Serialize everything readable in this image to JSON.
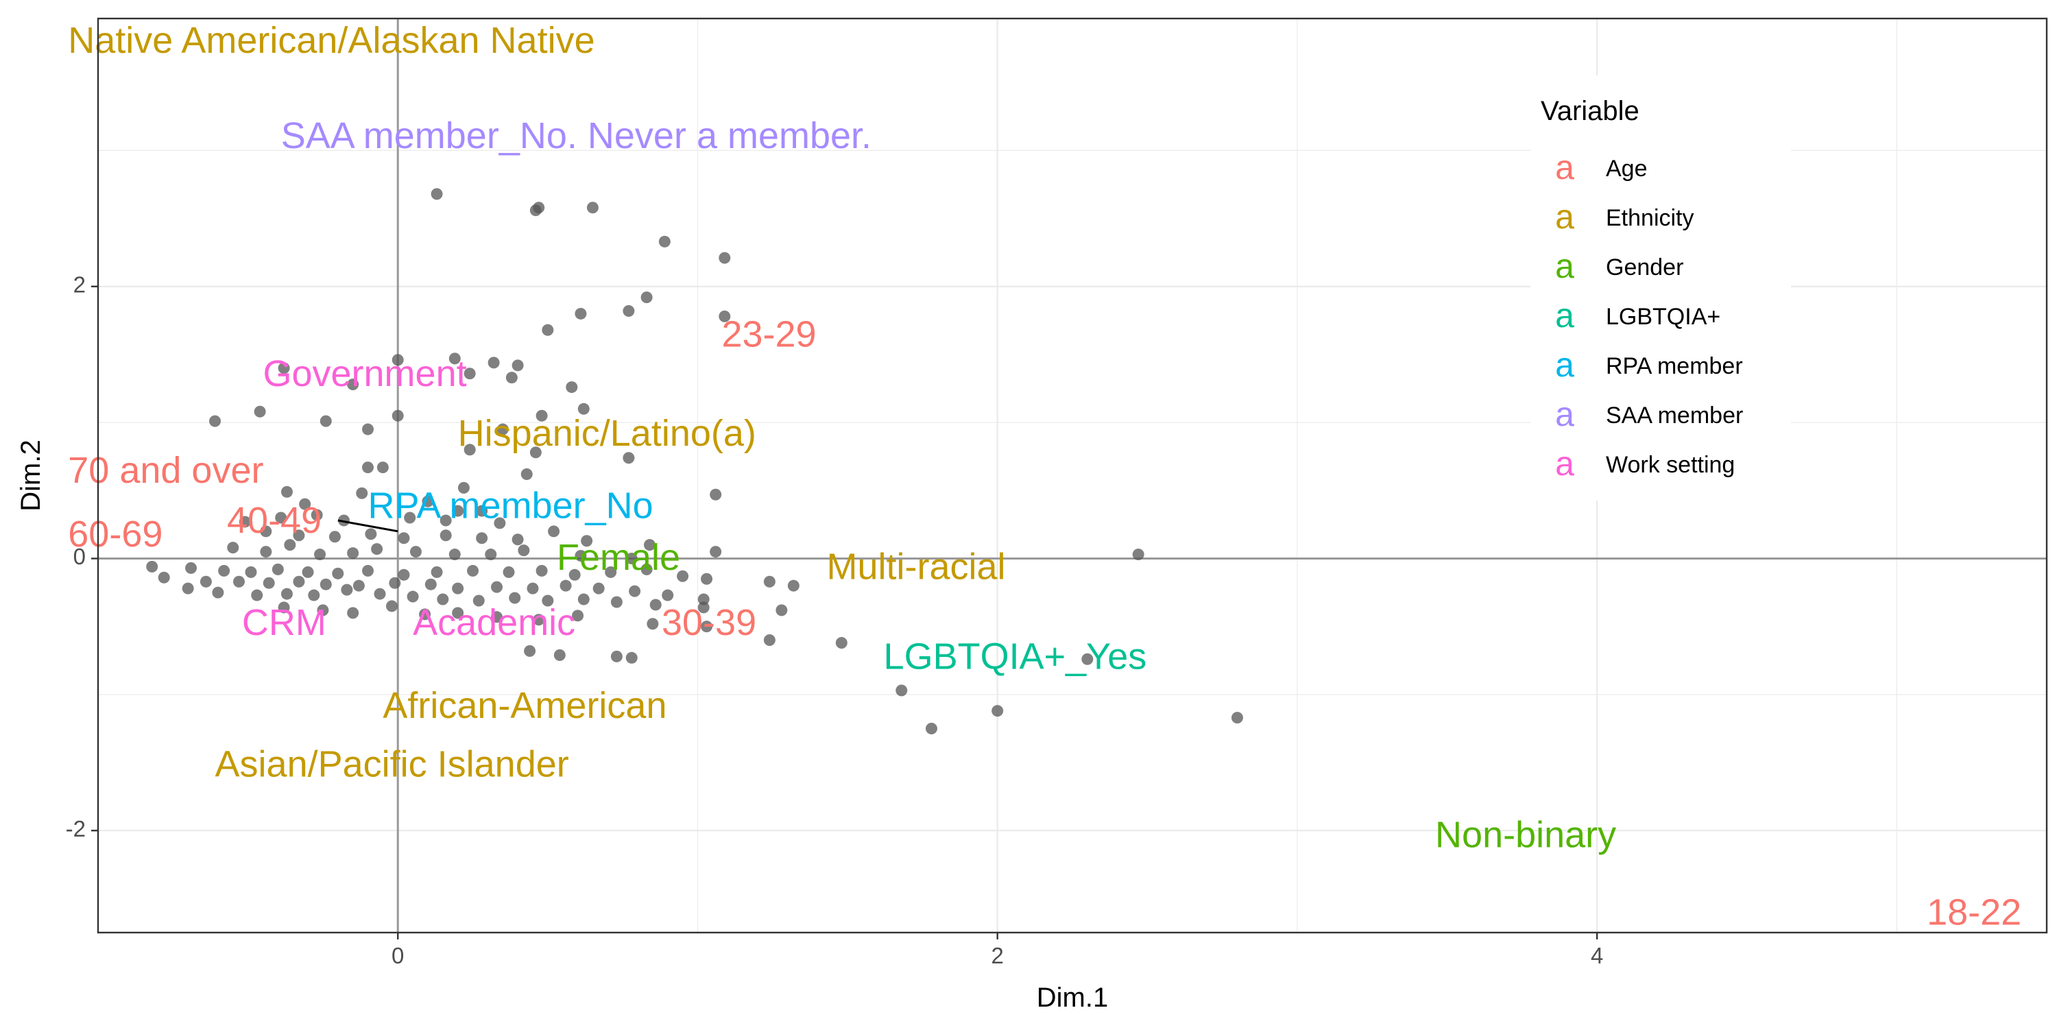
{
  "chart_data": {
    "type": "scatter",
    "xlabel": "Dim.1",
    "ylabel": "Dim.2",
    "xlim": [
      -1.0,
      5.5
    ],
    "ylim": [
      -2.75,
      3.97
    ],
    "x_ticks": [
      0,
      2,
      4
    ],
    "y_ticks": [
      -2,
      0,
      2
    ],
    "grid": true,
    "reference_lines": {
      "x": 0,
      "y": 0
    },
    "legend": {
      "title": "Variable",
      "placement": "top-right",
      "glyph": "a",
      "entries": [
        {
          "name": "Age",
          "color": "#F8766D"
        },
        {
          "name": "Ethnicity",
          "color": "#C49A00"
        },
        {
          "name": "Gender",
          "color": "#53B400"
        },
        {
          "name": "LGBTQIA+",
          "color": "#00C094"
        },
        {
          "name": "RPA member",
          "color": "#00B6EB"
        },
        {
          "name": "SAA member",
          "color": "#A58AFF"
        },
        {
          "name": "Work setting",
          "color": "#FB61D7"
        }
      ]
    },
    "points_color": "#555555",
    "points": [
      [
        0.13,
        2.68
      ],
      [
        0.46,
        2.56
      ],
      [
        0.47,
        2.58
      ],
      [
        0.65,
        2.58
      ],
      [
        0.89,
        2.33
      ],
      [
        1.09,
        2.21
      ],
      [
        0.83,
        1.92
      ],
      [
        0.77,
        1.82
      ],
      [
        0.61,
        1.8
      ],
      [
        0.5,
        1.68
      ],
      [
        1.09,
        1.78
      ],
      [
        0.0,
        1.46
      ],
      [
        0.19,
        1.47
      ],
      [
        0.32,
        1.44
      ],
      [
        0.4,
        1.42
      ],
      [
        -0.38,
        1.4
      ],
      [
        0.24,
        1.36
      ],
      [
        0.58,
        1.26
      ],
      [
        0.38,
        1.33
      ],
      [
        -0.15,
        1.28
      ],
      [
        0.62,
        1.1
      ],
      [
        0.48,
        1.05
      ],
      [
        -0.46,
        1.08
      ],
      [
        -0.24,
        1.01
      ],
      [
        -0.61,
        1.01
      ],
      [
        -0.1,
        0.95
      ],
      [
        0.0,
        1.05
      ],
      [
        0.35,
        0.95
      ],
      [
        0.24,
        0.8
      ],
      [
        0.46,
        0.78
      ],
      [
        0.77,
        0.74
      ],
      [
        -0.05,
        0.67
      ],
      [
        -0.1,
        0.67
      ],
      [
        0.43,
        0.62
      ],
      [
        1.06,
        0.47
      ],
      [
        0.22,
        0.52
      ],
      [
        -0.37,
        0.49
      ],
      [
        -0.31,
        0.4
      ],
      [
        -0.12,
        0.48
      ],
      [
        0.1,
        0.42
      ],
      [
        0.28,
        0.35
      ],
      [
        -0.51,
        0.27
      ],
      [
        -0.39,
        0.3
      ],
      [
        -0.27,
        0.32
      ],
      [
        -0.18,
        0.28
      ],
      [
        0.04,
        0.3
      ],
      [
        0.16,
        0.28
      ],
      [
        0.34,
        0.26
      ],
      [
        0.52,
        0.2
      ],
      [
        -0.44,
        0.2
      ],
      [
        -0.33,
        0.17
      ],
      [
        -0.21,
        0.16
      ],
      [
        -0.09,
        0.18
      ],
      [
        0.02,
        0.15
      ],
      [
        0.16,
        0.17
      ],
      [
        0.28,
        0.15
      ],
      [
        0.4,
        0.14
      ],
      [
        0.63,
        0.13
      ],
      [
        0.84,
        0.1
      ],
      [
        1.06,
        0.05
      ],
      [
        -0.55,
        0.08
      ],
      [
        -0.44,
        0.05
      ],
      [
        -0.36,
        0.1
      ],
      [
        -0.26,
        0.03
      ],
      [
        -0.15,
        0.04
      ],
      [
        -0.07,
        0.07
      ],
      [
        0.06,
        0.05
      ],
      [
        0.19,
        0.03
      ],
      [
        0.31,
        0.03
      ],
      [
        0.42,
        0.06
      ],
      [
        0.61,
        0.02
      ],
      [
        0.78,
        0.0
      ],
      [
        -0.82,
        -0.06
      ],
      [
        -0.69,
        -0.07
      ],
      [
        -0.58,
        -0.09
      ],
      [
        -0.49,
        -0.1
      ],
      [
        -0.4,
        -0.08
      ],
      [
        -0.3,
        -0.1
      ],
      [
        -0.2,
        -0.11
      ],
      [
        -0.1,
        -0.09
      ],
      [
        0.02,
        -0.12
      ],
      [
        0.13,
        -0.1
      ],
      [
        0.25,
        -0.09
      ],
      [
        0.37,
        -0.1
      ],
      [
        0.48,
        -0.09
      ],
      [
        0.59,
        -0.12
      ],
      [
        0.71,
        -0.1
      ],
      [
        0.83,
        -0.08
      ],
      [
        0.95,
        -0.13
      ],
      [
        1.03,
        -0.15
      ],
      [
        -0.78,
        -0.14
      ],
      [
        -0.64,
        -0.17
      ],
      [
        -0.53,
        -0.17
      ],
      [
        -0.43,
        -0.18
      ],
      [
        -0.33,
        -0.17
      ],
      [
        -0.24,
        -0.19
      ],
      [
        -0.13,
        -0.2
      ],
      [
        -0.01,
        -0.18
      ],
      [
        0.11,
        -0.19
      ],
      [
        0.2,
        -0.22
      ],
      [
        0.33,
        -0.21
      ],
      [
        0.45,
        -0.22
      ],
      [
        0.56,
        -0.2
      ],
      [
        0.67,
        -0.22
      ],
      [
        0.79,
        -0.24
      ],
      [
        0.9,
        -0.27
      ],
      [
        1.02,
        -0.3
      ],
      [
        1.24,
        -0.17
      ],
      [
        1.32,
        -0.2
      ],
      [
        -0.7,
        -0.22
      ],
      [
        -0.6,
        -0.25
      ],
      [
        -0.47,
        -0.27
      ],
      [
        -0.37,
        -0.26
      ],
      [
        -0.28,
        -0.27
      ],
      [
        -0.17,
        -0.23
      ],
      [
        -0.06,
        -0.26
      ],
      [
        0.05,
        -0.28
      ],
      [
        0.15,
        -0.3
      ],
      [
        0.27,
        -0.31
      ],
      [
        0.39,
        -0.29
      ],
      [
        0.5,
        -0.31
      ],
      [
        0.62,
        -0.3
      ],
      [
        0.73,
        -0.32
      ],
      [
        0.86,
        -0.34
      ],
      [
        1.02,
        -0.36
      ],
      [
        1.28,
        -0.38
      ],
      [
        -0.38,
        -0.36
      ],
      [
        -0.25,
        -0.38
      ],
      [
        -0.15,
        -0.4
      ],
      [
        -0.02,
        -0.35
      ],
      [
        0.09,
        -0.41
      ],
      [
        0.2,
        -0.4
      ],
      [
        0.33,
        -0.43
      ],
      [
        0.47,
        -0.45
      ],
      [
        0.6,
        -0.42
      ],
      [
        0.85,
        -0.48
      ],
      [
        1.03,
        -0.5
      ],
      [
        1.24,
        -0.6
      ],
      [
        0.44,
        -0.68
      ],
      [
        0.54,
        -0.71
      ],
      [
        0.73,
        -0.72
      ],
      [
        0.78,
        -0.73
      ],
      [
        1.48,
        -0.62
      ],
      [
        2.3,
        -0.74
      ],
      [
        1.68,
        -0.97
      ],
      [
        1.78,
        -1.25
      ],
      [
        2.0,
        -1.12
      ],
      [
        2.8,
        -1.17
      ],
      [
        2.47,
        0.03
      ],
      [
        0.2,
        0.35
      ]
    ],
    "labels": [
      {
        "text": "Native American/Alaskan Native",
        "group": "Ethnicity",
        "x": -1.1,
        "y": 3.79
      },
      {
        "text": "SAA member_No. Never a member.",
        "group": "SAA member",
        "x": -0.39,
        "y": 3.09
      },
      {
        "text": "23-29",
        "group": "Age",
        "x": 1.08,
        "y": 1.63
      },
      {
        "text": "Government",
        "group": "Work setting",
        "x": -0.45,
        "y": 1.34
      },
      {
        "text": "Hispanic/Latino(a)",
        "group": "Ethnicity",
        "x": 0.2,
        "y": 0.9
      },
      {
        "text": "70 and over",
        "group": "Age",
        "x": -1.1,
        "y": 0.63
      },
      {
        "text": "RPA member_No",
        "group": "RPA member",
        "x": -0.1,
        "y": 0.37
      },
      {
        "text": "40-49",
        "group": "Age",
        "x": -0.57,
        "y": 0.26
      },
      {
        "text": "60-69",
        "group": "Age",
        "x": -1.1,
        "y": 0.16
      },
      {
        "text": "Female",
        "group": "Gender",
        "x": 0.53,
        "y": -0.01
      },
      {
        "text": "Multi-racial",
        "group": "Ethnicity",
        "x": 1.43,
        "y": -0.08
      },
      {
        "text": "CRM",
        "group": "Work setting",
        "x": -0.52,
        "y": -0.49
      },
      {
        "text": "Academic",
        "group": "Work setting",
        "x": 0.05,
        "y": -0.49
      },
      {
        "text": "30-39",
        "group": "Age",
        "x": 0.88,
        "y": -0.49
      },
      {
        "text": "LGBTQIA+_Yes",
        "group": "LGBTQIA+",
        "x": 1.62,
        "y": -0.74
      },
      {
        "text": "African-American",
        "group": "Ethnicity",
        "x": -0.05,
        "y": -1.1
      },
      {
        "text": "Asian/Pacific Islander",
        "group": "Ethnicity",
        "x": -0.61,
        "y": -1.53
      },
      {
        "text": "Non-binary",
        "group": "Gender",
        "x": 3.46,
        "y": -2.05
      },
      {
        "text": "18-22",
        "group": "Age",
        "x": 5.1,
        "y": -2.62
      }
    ],
    "connector": {
      "from": [
        -0.2,
        0.28
      ],
      "to": [
        0.0,
        0.2
      ]
    }
  }
}
